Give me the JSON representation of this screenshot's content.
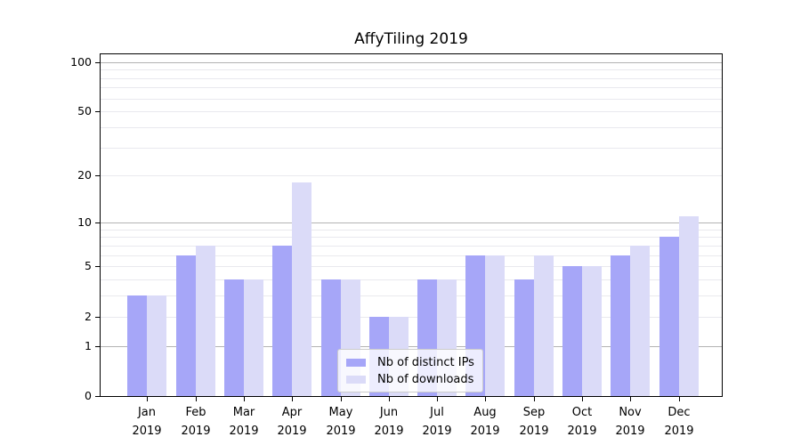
{
  "title": "AffyTiling 2019",
  "chart_data": {
    "type": "bar",
    "title": "AffyTiling 2019",
    "categories": [
      "Jan",
      "Feb",
      "Mar",
      "Apr",
      "May",
      "Jun",
      "Jul",
      "Aug",
      "Sep",
      "Oct",
      "Nov",
      "Dec"
    ],
    "year_label": "2019",
    "series": [
      {
        "name": "Nb of distinct IPs",
        "color": "#a6a6f8",
        "values": [
          3,
          6,
          4,
          7,
          4,
          2,
          4,
          6,
          4,
          5,
          6,
          8
        ]
      },
      {
        "name": "Nb of downloads",
        "color": "#dbdbf8",
        "values": [
          3,
          7,
          4,
          18,
          4,
          2,
          4,
          6,
          6,
          5,
          7,
          11
        ]
      }
    ],
    "y_scale": "log10(1+v)",
    "y_ticks": [
      0,
      1,
      2,
      5,
      10,
      20,
      50,
      100
    ],
    "y_major_gridlines": [
      1,
      10,
      100
    ],
    "y_minor_gridlines": [
      2,
      3,
      4,
      5,
      6,
      7,
      8,
      9,
      20,
      30,
      40,
      50,
      60,
      70,
      80,
      90
    ],
    "ylim": [
      0,
      110
    ],
    "grid": true,
    "legend_position": "lower center inside plot"
  },
  "colors": {
    "background": "#ffffff",
    "axis": "#000000",
    "major_grid": "#b3b3b3",
    "minor_grid": "#e9e9ee",
    "legend_border": "#cccccc"
  }
}
